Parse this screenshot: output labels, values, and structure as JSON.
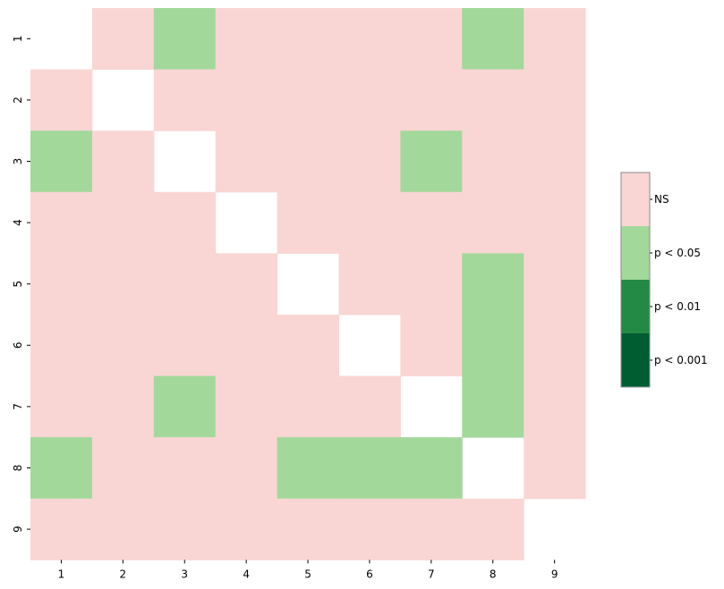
{
  "chart_data": {
    "type": "heatmap",
    "title": "",
    "xlabel": "",
    "ylabel": "",
    "x_categories": [
      "1",
      "2",
      "3",
      "4",
      "5",
      "6",
      "7",
      "8",
      "9"
    ],
    "y_categories": [
      "1",
      "2",
      "3",
      "4",
      "5",
      "6",
      "7",
      "8",
      "9"
    ],
    "levels": [
      {
        "key": "NS",
        "label": "NS",
        "color": "#f9d6d3"
      },
      {
        "key": "p05",
        "label": "p < 0.05",
        "color": "#a3d89b"
      },
      {
        "key": "p01",
        "label": "p < 0.01",
        "color": "#238a45"
      },
      {
        "key": "p001",
        "label": "p < 0.001",
        "color": "#005c31"
      }
    ],
    "cells": [
      [
        "",
        "NS",
        "p05",
        "NS",
        "NS",
        "NS",
        "NS",
        "p05",
        "NS"
      ],
      [
        "NS",
        "",
        "NS",
        "NS",
        "NS",
        "NS",
        "NS",
        "NS",
        "NS"
      ],
      [
        "p05",
        "NS",
        "",
        "NS",
        "NS",
        "NS",
        "p05",
        "NS",
        "NS"
      ],
      [
        "NS",
        "NS",
        "NS",
        "",
        "NS",
        "NS",
        "NS",
        "NS",
        "NS"
      ],
      [
        "NS",
        "NS",
        "NS",
        "NS",
        "",
        "NS",
        "NS",
        "p05",
        "NS"
      ],
      [
        "NS",
        "NS",
        "NS",
        "NS",
        "NS",
        "",
        "NS",
        "p05",
        "NS"
      ],
      [
        "NS",
        "NS",
        "p05",
        "NS",
        "NS",
        "NS",
        "",
        "p05",
        "NS"
      ],
      [
        "p05",
        "NS",
        "NS",
        "NS",
        "p05",
        "p05",
        "p05",
        "",
        "NS"
      ],
      [
        "NS",
        "NS",
        "NS",
        "NS",
        "NS",
        "NS",
        "NS",
        "NS",
        ""
      ]
    ],
    "legend_position": "right",
    "grid": false
  }
}
